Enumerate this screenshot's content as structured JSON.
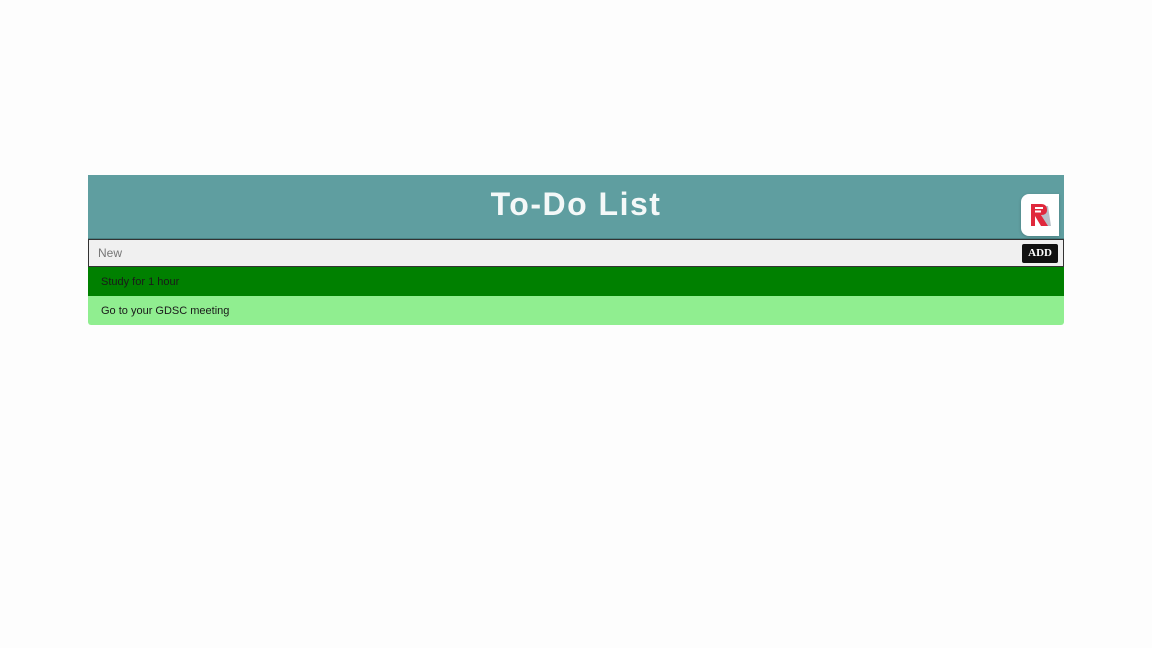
{
  "header": {
    "title": "To-Do List"
  },
  "input": {
    "value": "",
    "placeholder": "New",
    "add_label": "ADD"
  },
  "todos": [
    {
      "text": "Study for 1 hour",
      "color": "#008000"
    },
    {
      "text": "Go to your GDSC meeting",
      "color": "#90ee90"
    }
  ],
  "colors": {
    "header_bg": "#5f9ea0",
    "input_bg": "#f0f0f0",
    "add_button_bg": "#111111",
    "badge_accent": "#e0283c"
  },
  "icons": {
    "badge": "app-logo-icon"
  }
}
